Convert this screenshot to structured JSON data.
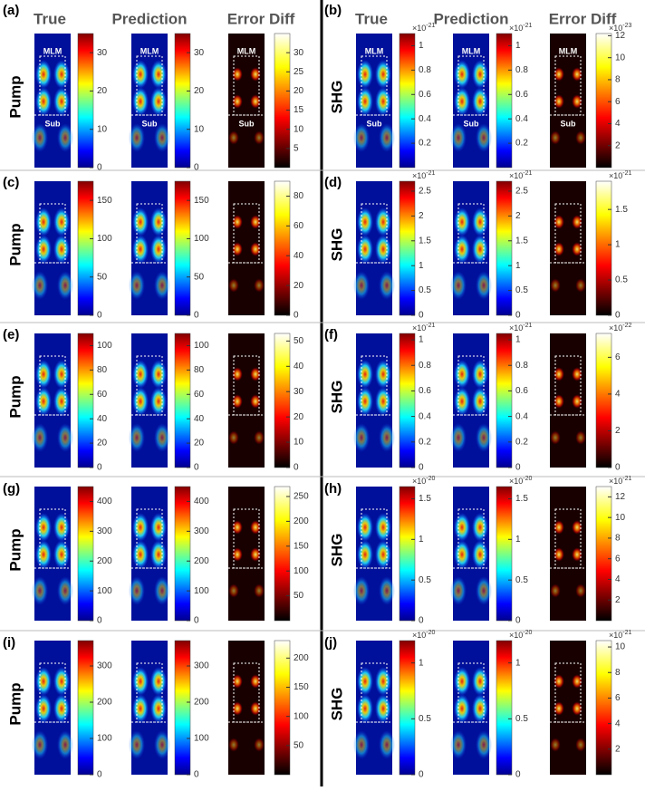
{
  "left_headers": [
    "True",
    "Prediction",
    "Error Diff"
  ],
  "right_headers": [
    "True",
    "Prediction",
    "Error Diff"
  ],
  "panels": [
    {
      "label": "(a)",
      "row_label": "Pump",
      "region_labels": [
        "MLM",
        "Sub"
      ],
      "colorbars": [
        {
          "lim": [
            0,
            35
          ],
          "ticks": [
            0,
            10,
            20,
            30
          ]
        },
        {
          "lim": [
            0,
            35
          ],
          "ticks": [
            0,
            10,
            20,
            30
          ]
        },
        {
          "lim": [
            0,
            35
          ],
          "ticks": [
            5,
            10,
            15,
            20,
            25,
            30
          ]
        }
      ]
    },
    {
      "label": "(b)",
      "row_label": "SHG",
      "region_labels": [
        "MLM",
        "Sub"
      ],
      "colorbars": [
        {
          "lim": [
            0,
            1.1
          ],
          "ticks": [
            0.2,
            0.4,
            0.6,
            0.8,
            1
          ],
          "exponent": {
            "base": "×10",
            "power": "-21"
          }
        },
        {
          "lim": [
            0,
            1.1
          ],
          "ticks": [
            0.2,
            0.4,
            0.6,
            0.8,
            1
          ],
          "exponent": {
            "base": "×10",
            "power": "-21"
          }
        },
        {
          "lim": [
            0,
            12.2
          ],
          "ticks": [
            2,
            4,
            6,
            8,
            10,
            12
          ],
          "exponent": {
            "base": "×10",
            "power": "-23"
          }
        }
      ]
    },
    {
      "label": "(c)",
      "row_label": "Pump",
      "colorbars": [
        {
          "lim": [
            0,
            175
          ],
          "ticks": [
            0,
            50,
            100,
            150
          ]
        },
        {
          "lim": [
            0,
            175
          ],
          "ticks": [
            0,
            50,
            100,
            150
          ]
        },
        {
          "lim": [
            0,
            90
          ],
          "ticks": [
            0,
            20,
            40,
            60,
            80
          ]
        }
      ]
    },
    {
      "label": "(d)",
      "row_label": "SHG",
      "colorbars": [
        {
          "lim": [
            0,
            2.7
          ],
          "ticks": [
            0,
            0.5,
            1,
            1.5,
            2,
            2.5
          ],
          "exponent": {
            "base": "×10",
            "power": "-21"
          }
        },
        {
          "lim": [
            0,
            2.7
          ],
          "ticks": [
            0,
            0.5,
            1,
            1.5,
            2,
            2.5
          ],
          "exponent": {
            "base": "×10",
            "power": "-21"
          }
        },
        {
          "lim": [
            0,
            1.9
          ],
          "ticks": [
            0,
            0.5,
            1,
            1.5
          ],
          "exponent": {
            "base": "×10",
            "power": "-21"
          }
        }
      ]
    },
    {
      "label": "(e)",
      "row_label": "Pump",
      "colorbars": [
        {
          "lim": [
            0,
            110
          ],
          "ticks": [
            0,
            20,
            40,
            60,
            80,
            100
          ]
        },
        {
          "lim": [
            0,
            110
          ],
          "ticks": [
            0,
            20,
            40,
            60,
            80,
            100
          ]
        },
        {
          "lim": [
            0,
            53
          ],
          "ticks": [
            0,
            10,
            20,
            30,
            40,
            50
          ]
        }
      ]
    },
    {
      "label": "(f)",
      "row_label": "SHG",
      "colorbars": [
        {
          "lim": [
            0,
            1.05
          ],
          "ticks": [
            0,
            0.2,
            0.4,
            0.6,
            0.8,
            1
          ],
          "exponent": {
            "base": "×10",
            "power": "-21"
          }
        },
        {
          "lim": [
            0,
            1.05
          ],
          "ticks": [
            0,
            0.2,
            0.4,
            0.6,
            0.8,
            1
          ],
          "exponent": {
            "base": "×10",
            "power": "-21"
          }
        },
        {
          "lim": [
            0,
            7.3
          ],
          "ticks": [
            0,
            2,
            4,
            6
          ],
          "exponent": {
            "base": "×10",
            "power": "-22"
          }
        }
      ]
    },
    {
      "label": "(g)",
      "row_label": "Pump",
      "colorbars": [
        {
          "lim": [
            0,
            450
          ],
          "ticks": [
            0,
            100,
            200,
            300,
            400
          ]
        },
        {
          "lim": [
            0,
            450
          ],
          "ticks": [
            0,
            100,
            200,
            300,
            400
          ]
        },
        {
          "lim": [
            0,
            270
          ],
          "ticks": [
            50,
            100,
            150,
            200,
            250
          ]
        }
      ]
    },
    {
      "label": "(h)",
      "row_label": "SHG",
      "colorbars": [
        {
          "lim": [
            0,
            1.65
          ],
          "ticks": [
            0,
            0.5,
            1,
            1.5
          ],
          "exponent": {
            "base": "×10",
            "power": "-20"
          }
        },
        {
          "lim": [
            0,
            1.65
          ],
          "ticks": [
            0,
            0.5,
            1,
            1.5
          ],
          "exponent": {
            "base": "×10",
            "power": "-20"
          }
        },
        {
          "lim": [
            0,
            13
          ],
          "ticks": [
            2,
            4,
            6,
            8,
            10,
            12
          ],
          "exponent": {
            "base": "×10",
            "power": "-21"
          }
        }
      ]
    },
    {
      "label": "(i)",
      "row_label": "Pump",
      "colorbars": [
        {
          "lim": [
            0,
            370
          ],
          "ticks": [
            0,
            100,
            200,
            300
          ]
        },
        {
          "lim": [
            0,
            370
          ],
          "ticks": [
            0,
            100,
            200,
            300
          ]
        },
        {
          "lim": [
            0,
            230
          ],
          "ticks": [
            50,
            100,
            150,
            200
          ]
        }
      ]
    },
    {
      "label": "(j)",
      "row_label": "SHG",
      "colorbars": [
        {
          "lim": [
            0,
            1.2
          ],
          "ticks": [
            0,
            0.5,
            1
          ],
          "exponent": {
            "base": "×10",
            "power": "-20"
          }
        },
        {
          "lim": [
            0,
            1.2
          ],
          "ticks": [
            0,
            0.5,
            1
          ],
          "exponent": {
            "base": "×10",
            "power": "-20"
          }
        },
        {
          "lim": [
            0,
            10.5
          ],
          "ticks": [
            2,
            4,
            6,
            8,
            10
          ],
          "exponent": {
            "base": "×10",
            "power": "-21"
          }
        }
      ]
    }
  ]
}
